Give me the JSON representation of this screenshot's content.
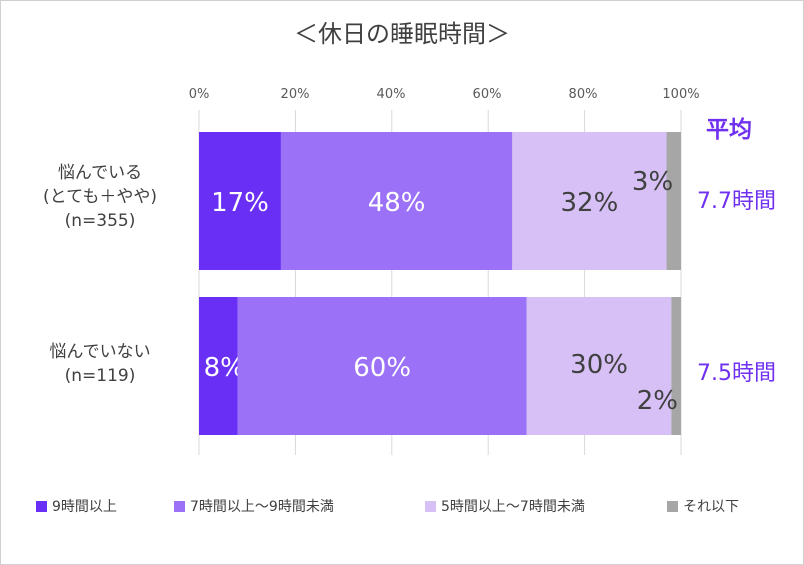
{
  "chart_data": {
    "type": "stacked-bar-horizontal",
    "title": "＜休日の睡眠時間＞",
    "xlim": [
      0,
      100
    ],
    "x_ticks": [
      "0%",
      "20%",
      "40%",
      "60%",
      "80%",
      "100%"
    ],
    "categories": [
      [
        "悩んでいる",
        "(とても＋やや)",
        "(n=355)"
      ],
      [
        "悩んでいない",
        "(n=119)"
      ]
    ],
    "series": [
      {
        "name": "9時間以上",
        "color": "#6a2ff5",
        "values": [
          17,
          8
        ],
        "labels": [
          "17%",
          "8%"
        ]
      },
      {
        "name": "7時間以上～9時間未満",
        "color": "#9b72f7",
        "values": [
          48,
          60
        ],
        "labels": [
          "48%",
          "60%"
        ]
      },
      {
        "name": "5時間以上～7時間未満",
        "color": "#d6c0f5",
        "values": [
          32,
          30
        ],
        "labels": [
          "32%",
          "30%"
        ]
      },
      {
        "name": "それ以下",
        "color": "#a6a6a6",
        "values": [
          3,
          2
        ],
        "labels": [
          "3%",
          "2%"
        ]
      }
    ],
    "average_header": "平均",
    "averages": [
      "7.7時間",
      "7.5時間"
    ],
    "legend_position": "bottom"
  }
}
